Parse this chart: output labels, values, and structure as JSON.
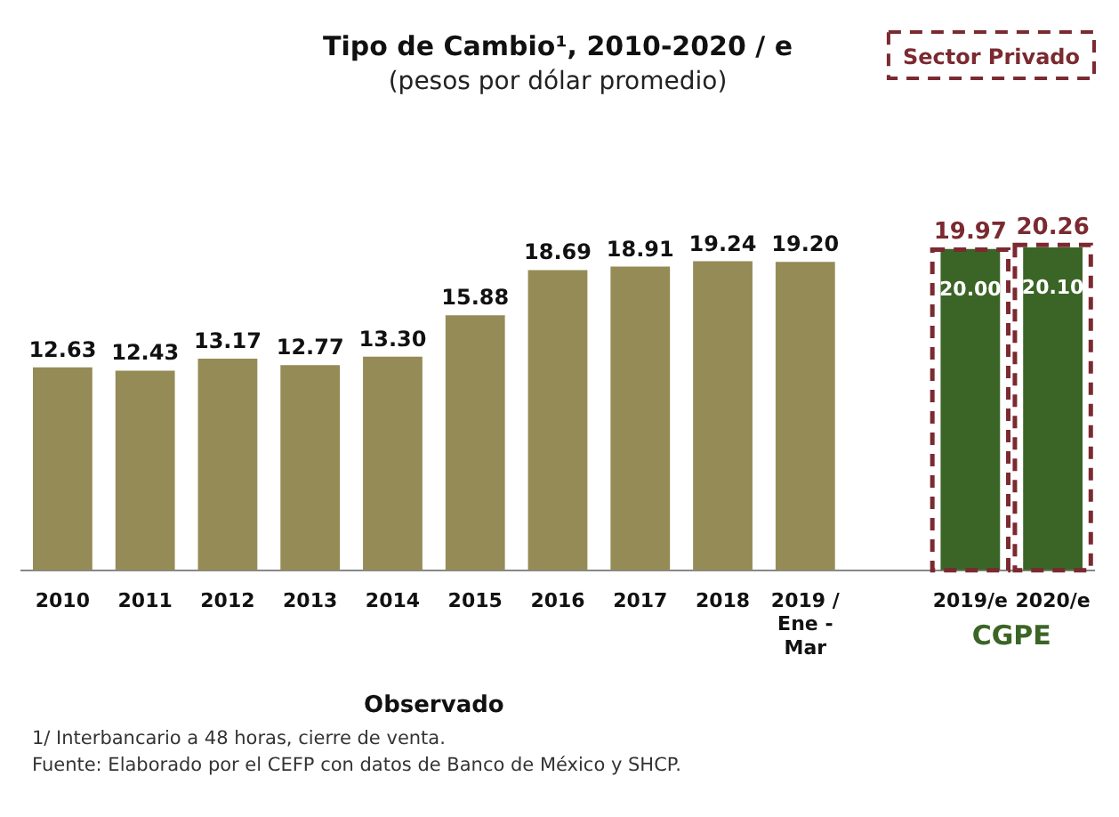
{
  "chart_data": {
    "type": "bar",
    "title": "Tipo de Cambio¹, 2010-2020 / e",
    "subtitle": "(pesos por dólar promedio)",
    "categories": [
      "2010",
      "2011",
      "2012",
      "2013",
      "2014",
      "2015",
      "2016",
      "2017",
      "2018",
      "2019 / Ene - Mar",
      null,
      "2019/e",
      "2020/e"
    ],
    "series": [
      {
        "colors": [
          "#958b57",
          "#958b57",
          "#958b57",
          "#958b57",
          "#958b57",
          "#958b57",
          "#958b57",
          "#958b57",
          "#958b57",
          "#958b57",
          "#958b57",
          "#3b6526",
          "#3b6526"
        ],
        "values": [
          12.63,
          12.43,
          13.17,
          12.77,
          13.3,
          15.88,
          18.69,
          18.91,
          19.24,
          19.2,
          null,
          20.0,
          20.1
        ],
        "value_labels": [
          "12.63",
          "12.43",
          "13.17",
          "12.77",
          "13.30",
          "15.88",
          "18.69",
          "18.91",
          "19.24",
          "19.20",
          null,
          "20.00",
          "20.10"
        ]
      },
      {
        "name": "Sector Privado",
        "color": "#7a2a30",
        "values": [
          null,
          null,
          null,
          null,
          null,
          null,
          null,
          null,
          null,
          null,
          null,
          19.97,
          20.26
        ],
        "value_labels": [
          null,
          null,
          null,
          null,
          null,
          null,
          null,
          null,
          null,
          null,
          null,
          "19.97",
          "20.26"
        ]
      }
    ],
    "tick_labels": "x",
    "legend": "top right",
    "annotations": [
      "Observado",
      "CGPE",
      "1/ Interbancario a 48 horas, cierre de venta.",
      "Fuente: Elaborado por el CEFP con datos de Banco de México y SHCP."
    ]
  }
}
